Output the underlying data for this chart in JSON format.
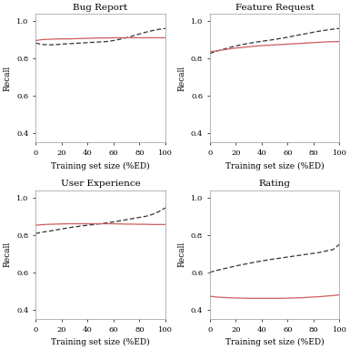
{
  "subplots": [
    {
      "title": "Bug Report",
      "active_x": [
        0,
        5,
        10,
        15,
        20,
        25,
        30,
        35,
        40,
        45,
        50,
        55,
        60,
        65,
        70,
        75,
        80,
        85,
        90,
        95,
        100
      ],
      "active_y": [
        0.895,
        0.9,
        0.902,
        0.903,
        0.904,
        0.904,
        0.905,
        0.906,
        0.907,
        0.908,
        0.909,
        0.909,
        0.91,
        0.91,
        0.91,
        0.91,
        0.91,
        0.91,
        0.91,
        0.91,
        0.91
      ],
      "baseline_x": [
        0,
        5,
        10,
        15,
        20,
        25,
        30,
        35,
        40,
        45,
        50,
        55,
        60,
        65,
        70,
        75,
        80,
        85,
        90,
        95,
        100
      ],
      "baseline_y": [
        0.882,
        0.874,
        0.872,
        0.873,
        0.876,
        0.878,
        0.88,
        0.882,
        0.884,
        0.886,
        0.888,
        0.89,
        0.895,
        0.902,
        0.91,
        0.92,
        0.93,
        0.94,
        0.948,
        0.955,
        0.96
      ],
      "ylim": [
        0.35,
        1.04
      ],
      "yticks": [
        0.4,
        0.6,
        0.8,
        1.0
      ]
    },
    {
      "title": "Feature Request",
      "active_x": [
        0,
        5,
        10,
        15,
        20,
        25,
        30,
        35,
        40,
        45,
        50,
        55,
        60,
        65,
        70,
        75,
        80,
        85,
        90,
        95,
        100
      ],
      "active_y": [
        0.835,
        0.84,
        0.845,
        0.85,
        0.855,
        0.858,
        0.862,
        0.865,
        0.868,
        0.87,
        0.872,
        0.874,
        0.876,
        0.878,
        0.88,
        0.882,
        0.884,
        0.886,
        0.888,
        0.889,
        0.89
      ],
      "baseline_x": [
        0,
        5,
        10,
        15,
        20,
        25,
        30,
        35,
        40,
        45,
        50,
        55,
        60,
        65,
        70,
        75,
        80,
        85,
        90,
        95,
        100
      ],
      "baseline_y": [
        0.826,
        0.838,
        0.847,
        0.858,
        0.866,
        0.874,
        0.88,
        0.886,
        0.891,
        0.896,
        0.901,
        0.907,
        0.913,
        0.92,
        0.927,
        0.933,
        0.94,
        0.946,
        0.951,
        0.956,
        0.96
      ],
      "ylim": [
        0.35,
        1.04
      ],
      "yticks": [
        0.4,
        0.6,
        0.8,
        1.0
      ]
    },
    {
      "title": "User Experience",
      "active_x": [
        0,
        5,
        10,
        15,
        20,
        25,
        30,
        35,
        40,
        45,
        50,
        55,
        60,
        65,
        70,
        75,
        80,
        85,
        90,
        95,
        100
      ],
      "active_y": [
        0.852,
        0.855,
        0.857,
        0.858,
        0.859,
        0.86,
        0.86,
        0.86,
        0.86,
        0.86,
        0.86,
        0.86,
        0.86,
        0.859,
        0.858,
        0.858,
        0.857,
        0.857,
        0.856,
        0.856,
        0.856
      ],
      "baseline_x": [
        0,
        5,
        10,
        15,
        20,
        25,
        30,
        35,
        40,
        45,
        50,
        55,
        60,
        65,
        70,
        75,
        80,
        85,
        90,
        95,
        100
      ],
      "baseline_y": [
        0.808,
        0.815,
        0.82,
        0.826,
        0.832,
        0.838,
        0.843,
        0.848,
        0.852,
        0.856,
        0.86,
        0.865,
        0.87,
        0.876,
        0.882,
        0.888,
        0.894,
        0.9,
        0.91,
        0.925,
        0.945
      ],
      "ylim": [
        0.35,
        1.04
      ],
      "yticks": [
        0.4,
        0.6,
        0.8,
        1.0
      ]
    },
    {
      "title": "Rating",
      "active_x": [
        0,
        5,
        10,
        15,
        20,
        25,
        30,
        35,
        40,
        45,
        50,
        55,
        60,
        65,
        70,
        75,
        80,
        85,
        90,
        95,
        100
      ],
      "active_y": [
        0.472,
        0.468,
        0.466,
        0.464,
        0.463,
        0.462,
        0.461,
        0.461,
        0.461,
        0.461,
        0.461,
        0.461,
        0.462,
        0.463,
        0.464,
        0.466,
        0.468,
        0.47,
        0.473,
        0.476,
        0.48
      ],
      "baseline_x": [
        0,
        5,
        10,
        15,
        20,
        25,
        30,
        35,
        40,
        45,
        50,
        55,
        60,
        65,
        70,
        75,
        80,
        85,
        90,
        95,
        100
      ],
      "baseline_y": [
        0.6,
        0.61,
        0.618,
        0.626,
        0.634,
        0.641,
        0.648,
        0.655,
        0.661,
        0.667,
        0.672,
        0.677,
        0.682,
        0.687,
        0.692,
        0.697,
        0.702,
        0.707,
        0.715,
        0.722,
        0.75
      ],
      "ylim": [
        0.35,
        1.04
      ],
      "yticks": [
        0.4,
        0.6,
        0.8,
        1.0
      ]
    }
  ],
  "active_color": "#cd5c5c",
  "baseline_color": "#333333",
  "active_lw": 0.9,
  "baseline_lw": 0.9,
  "xlabel": "Training set size (%ED)",
  "ylabel": "Recall",
  "background_color": "#ffffff",
  "figure_facecolor": "#ffffff",
  "title_fontsize": 7.5,
  "label_fontsize": 6.5,
  "tick_fontsize": 6.0
}
